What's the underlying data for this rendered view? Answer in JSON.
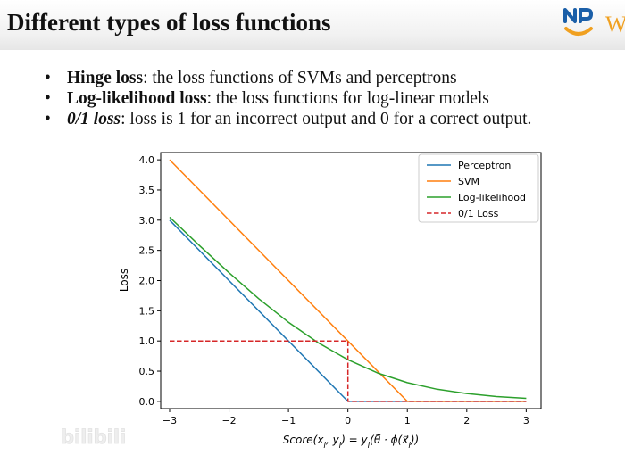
{
  "slide": {
    "title": "Different types of loss functions",
    "logo_text": "W"
  },
  "bullets": [
    {
      "term": "Hinge loss",
      "text": ": the loss functions of SVMs and perceptrons",
      "italic": false
    },
    {
      "term": "Log-likelihood loss",
      "text": ": the loss functions for log-linear models",
      "italic": false
    },
    {
      "term": "0/1 loss",
      "text": ": loss is 1 for an incorrect output and 0 for a correct output.",
      "italic": true
    }
  ],
  "chart_data": {
    "type": "line",
    "xlabel": "Score(x_i, y_i) = y_i(θ · φ(x_i))",
    "ylabel": "Loss",
    "xlim": [
      -3.15,
      3.25
    ],
    "ylim": [
      -0.12,
      4.12
    ],
    "xticks": [
      -3,
      -2,
      -1,
      0,
      1,
      2,
      3
    ],
    "xtick_labels": [
      "−3",
      "−2",
      "−1",
      "0",
      "1",
      "2",
      "3"
    ],
    "yticks": [
      0.0,
      0.5,
      1.0,
      1.5,
      2.0,
      2.5,
      3.0,
      3.5,
      4.0
    ],
    "ytick_labels": [
      "0.0",
      "0.5",
      "1.0",
      "1.5",
      "2.0",
      "2.5",
      "3.0",
      "3.5",
      "4.0"
    ],
    "grid": false,
    "legend_position": "top-right",
    "series": [
      {
        "name": "Perceptron",
        "color": "#1f77b4",
        "dash": false,
        "x": [
          -3,
          0,
          3
        ],
        "y": [
          3,
          0,
          0
        ]
      },
      {
        "name": "SVM",
        "color": "#ff7f0e",
        "dash": false,
        "x": [
          -3,
          1,
          3
        ],
        "y": [
          4,
          0,
          0
        ]
      },
      {
        "name": "Log-likelihood",
        "color": "#2ca02c",
        "dash": false,
        "x": [
          -3.0,
          -2.5,
          -2.0,
          -1.5,
          -1.0,
          -0.5,
          0.0,
          0.5,
          1.0,
          1.5,
          2.0,
          2.5,
          3.0
        ],
        "y": [
          3.05,
          2.58,
          2.13,
          1.7,
          1.31,
          0.97,
          0.69,
          0.47,
          0.31,
          0.2,
          0.13,
          0.08,
          0.05
        ]
      },
      {
        "name": "0/1 Loss",
        "color": "#d62728",
        "dash": true,
        "x": [
          -3,
          0,
          0,
          3
        ],
        "y": [
          1,
          1,
          0,
          0
        ]
      }
    ]
  },
  "watermark": {
    "text": "bilibili"
  }
}
